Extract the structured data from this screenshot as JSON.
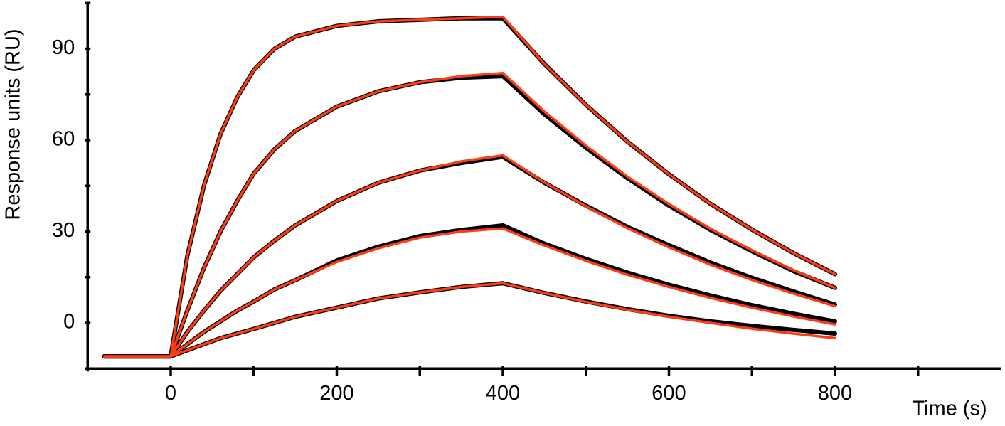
{
  "chart_data": {
    "type": "line",
    "x_label": "Time (s)",
    "y_label": "Response units (RU)",
    "x": [
      -80,
      0,
      20,
      40,
      60,
      80,
      100,
      125,
      150,
      200,
      250,
      300,
      350,
      400,
      450,
      500,
      550,
      600,
      650,
      700,
      750,
      800
    ],
    "series": [
      {
        "color": "#000000",
        "values": [
          -11,
          -11,
          22,
          45,
          62,
          74,
          83,
          90,
          94,
          97.5,
          99,
          99.5,
          100,
          100,
          85,
          71.6,
          59.5,
          48.8,
          39.1,
          30.6,
          22.9,
          16
        ]
      },
      {
        "color": "#000000",
        "values": [
          -11,
          -11,
          4,
          18,
          30,
          40,
          49,
          57,
          63,
          71,
          76,
          79,
          80.5,
          81,
          68.5,
          57.5,
          47.5,
          38.5,
          30.5,
          23.5,
          17,
          11.5
        ]
      },
      {
        "color": "#000000",
        "values": [
          -11,
          -11,
          -3,
          4,
          10.5,
          16,
          21.5,
          27,
          32,
          40,
          46,
          50,
          52.5,
          54.5,
          46,
          38.5,
          31.5,
          25.5,
          19.8,
          14.8,
          10.3,
          6
        ]
      },
      {
        "color": "#000000",
        "values": [
          -11,
          -11,
          -7,
          -3,
          0.5,
          4,
          7,
          11,
          14,
          20.5,
          25,
          28.5,
          30.5,
          32,
          26,
          21,
          16.5,
          12.5,
          9,
          5.8,
          3,
          0.5
        ]
      },
      {
        "color": "#000000",
        "values": [
          -11,
          -11,
          -9,
          -7,
          -5,
          -3.5,
          -2,
          0,
          2,
          5,
          8,
          10,
          11.8,
          13,
          9.8,
          7,
          4.5,
          2.3,
          0.5,
          -1,
          -2.3,
          -3.5
        ]
      },
      {
        "color": "#ff3b14",
        "values": [
          -11,
          -11,
          22,
          45,
          62,
          74,
          83,
          90,
          94,
          97.5,
          99,
          99.5,
          100,
          100.5,
          85,
          71.6,
          59.5,
          48.8,
          39.1,
          30.6,
          22.9,
          16
        ]
      },
      {
        "color": "#ff3b14",
        "values": [
          -11,
          -11,
          4,
          18,
          30,
          40,
          49,
          57,
          63,
          71,
          76,
          79,
          81,
          82,
          69.4,
          58.2,
          48,
          39,
          30.9,
          23.8,
          17.3,
          11.5
        ]
      },
      {
        "color": "#ff3b14",
        "values": [
          -11,
          -11,
          -3,
          4,
          10.5,
          16,
          21.5,
          27,
          32,
          40,
          46,
          50,
          53,
          55,
          46.1,
          38.3,
          31.1,
          24.8,
          19.1,
          14.1,
          9.6,
          5.5
        ]
      },
      {
        "color": "#ff3b14",
        "values": [
          -11,
          -11,
          -7,
          -3,
          0.5,
          4,
          7,
          11,
          14,
          20,
          24.5,
          28,
          30,
          31,
          25.4,
          20.4,
          15.8,
          11.8,
          8.2,
          5,
          2.1,
          -0.5
        ]
      },
      {
        "color": "#ff3b14",
        "values": [
          -11,
          -11,
          -9,
          -7,
          -5,
          -3.5,
          -2,
          0,
          2,
          5,
          8,
          10,
          11.8,
          13,
          9.8,
          6.9,
          4.3,
          2,
          0,
          -1.9,
          -3.5,
          -5
        ]
      }
    ],
    "xlim": [
      -100,
      1000
    ],
    "ylim": [
      -15,
      105
    ],
    "xticks": [
      0,
      200,
      400,
      600,
      800
    ],
    "yticks": [
      0,
      30,
      60,
      90
    ],
    "x_minor_ticks": [
      100,
      300,
      500,
      700,
      900
    ],
    "y_minor_ticks": [
      15,
      45,
      75,
      105
    ],
    "grid": false
  }
}
